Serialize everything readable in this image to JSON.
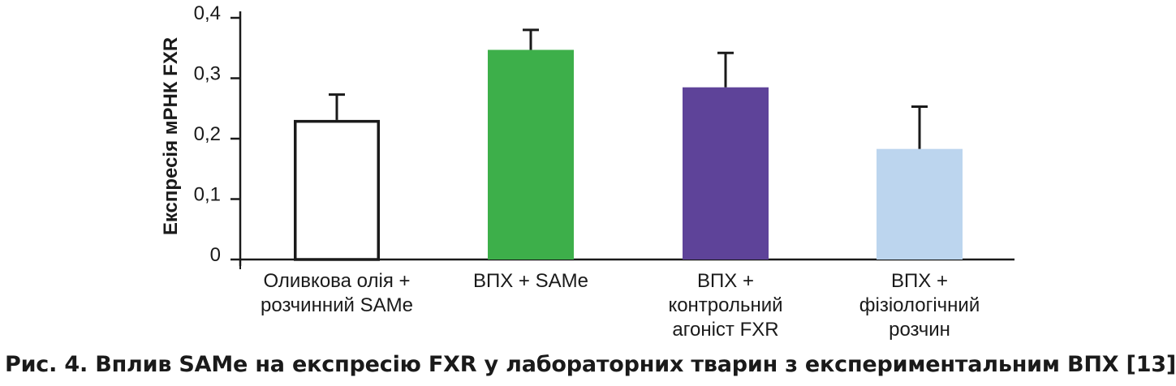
{
  "caption": "Рис. 4. Вплив SAMe на експресію FXR у лабораторних тварин з експериментальним ВПХ [13]",
  "chart_data": {
    "type": "bar",
    "ylabel": "Експресія мРНК FXR",
    "xlabel": "",
    "ylim": [
      0,
      0.4
    ],
    "yticks": [
      "0",
      "0,1",
      "0,2",
      "0,3",
      "0,4"
    ],
    "grid": false,
    "categories": [
      [
        "Оливкова олія +",
        "розчинний SAMe"
      ],
      [
        "ВПХ + SAMe"
      ],
      [
        "ВПХ +",
        "контрольний",
        "агоніст FXR"
      ],
      [
        "ВПХ +",
        "фізіологічний",
        "розчин"
      ]
    ],
    "values": [
      0.231,
      0.347,
      0.285,
      0.183
    ],
    "errors": [
      0.042,
      0.033,
      0.057,
      0.07
    ],
    "colors": [
      "#ffffff",
      "#3daf4a",
      "#5e4399",
      "#bcd5ee"
    ],
    "outline": [
      "#1a1a1a",
      "none",
      "none",
      "none"
    ]
  }
}
